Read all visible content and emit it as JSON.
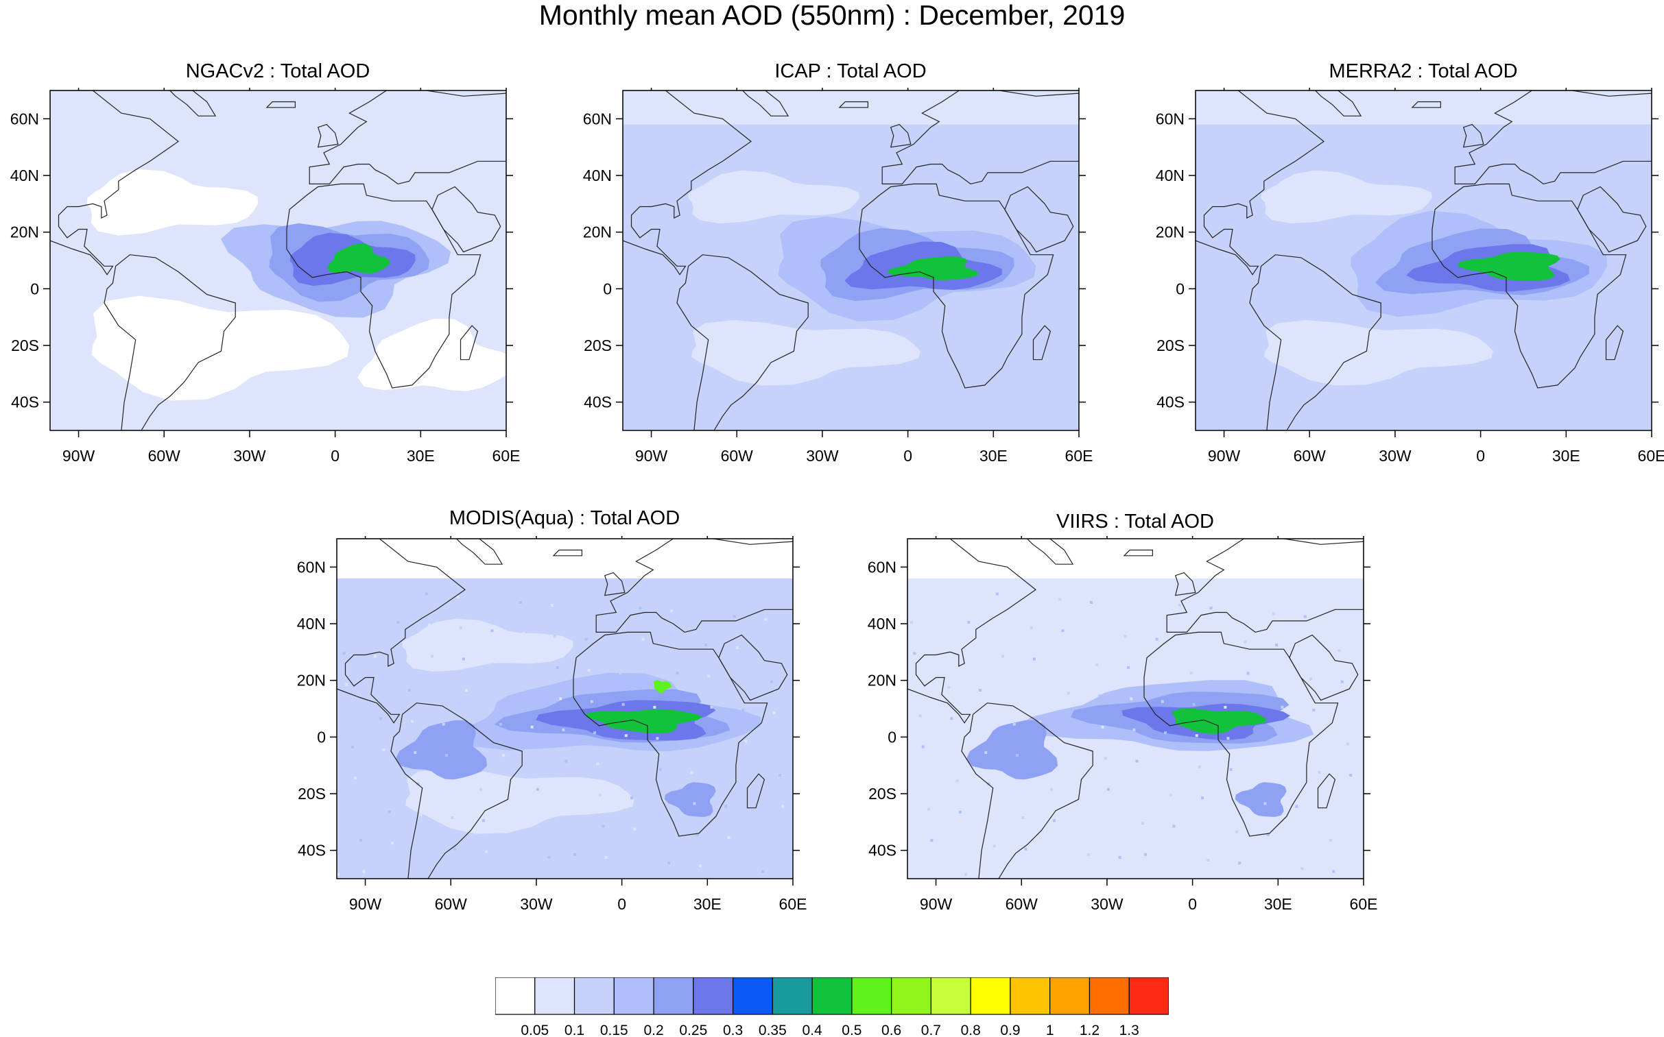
{
  "title": "Monthly mean AOD (550nm) : December, 2019",
  "panels": [
    {
      "title": "NGACv2 : Total AOD",
      "id": "ngacv2"
    },
    {
      "title": "ICAP : Total AOD",
      "id": "icap"
    },
    {
      "title": "MERRA2 : Total AOD",
      "id": "merra2"
    },
    {
      "title": "MODIS(Aqua) : Total AOD",
      "id": "modis"
    },
    {
      "title": "VIIRS : Total AOD",
      "id": "viirs"
    }
  ],
  "axes": {
    "lon_labels": [
      "90W",
      "60W",
      "30W",
      "0",
      "30E",
      "60E"
    ],
    "lat_labels": [
      "60N",
      "40N",
      "20N",
      "0",
      "20S",
      "40S"
    ],
    "lon_range": [
      -100,
      60
    ],
    "lat_range": [
      -50,
      70
    ]
  },
  "colorbar": {
    "labels": [
      "0.05",
      "0.1",
      "0.15",
      "0.2",
      "0.25",
      "0.3",
      "0.35",
      "0.4",
      "0.5",
      "0.6",
      "0.7",
      "0.8",
      "0.9",
      "1",
      "1.2",
      "1.3"
    ],
    "colors": [
      "#ffffff",
      "#dde4fb",
      "#c6d2fa",
      "#aebffa",
      "#8fa1f2",
      "#6b77ea",
      "#0a5af5",
      "#189a9d",
      "#11c23a",
      "#5cf21a",
      "#8ff51a",
      "#c4ff3a",
      "#ffff00",
      "#ffc400",
      "#ffa200",
      "#ff6f00",
      "#ff2a14"
    ]
  }
}
